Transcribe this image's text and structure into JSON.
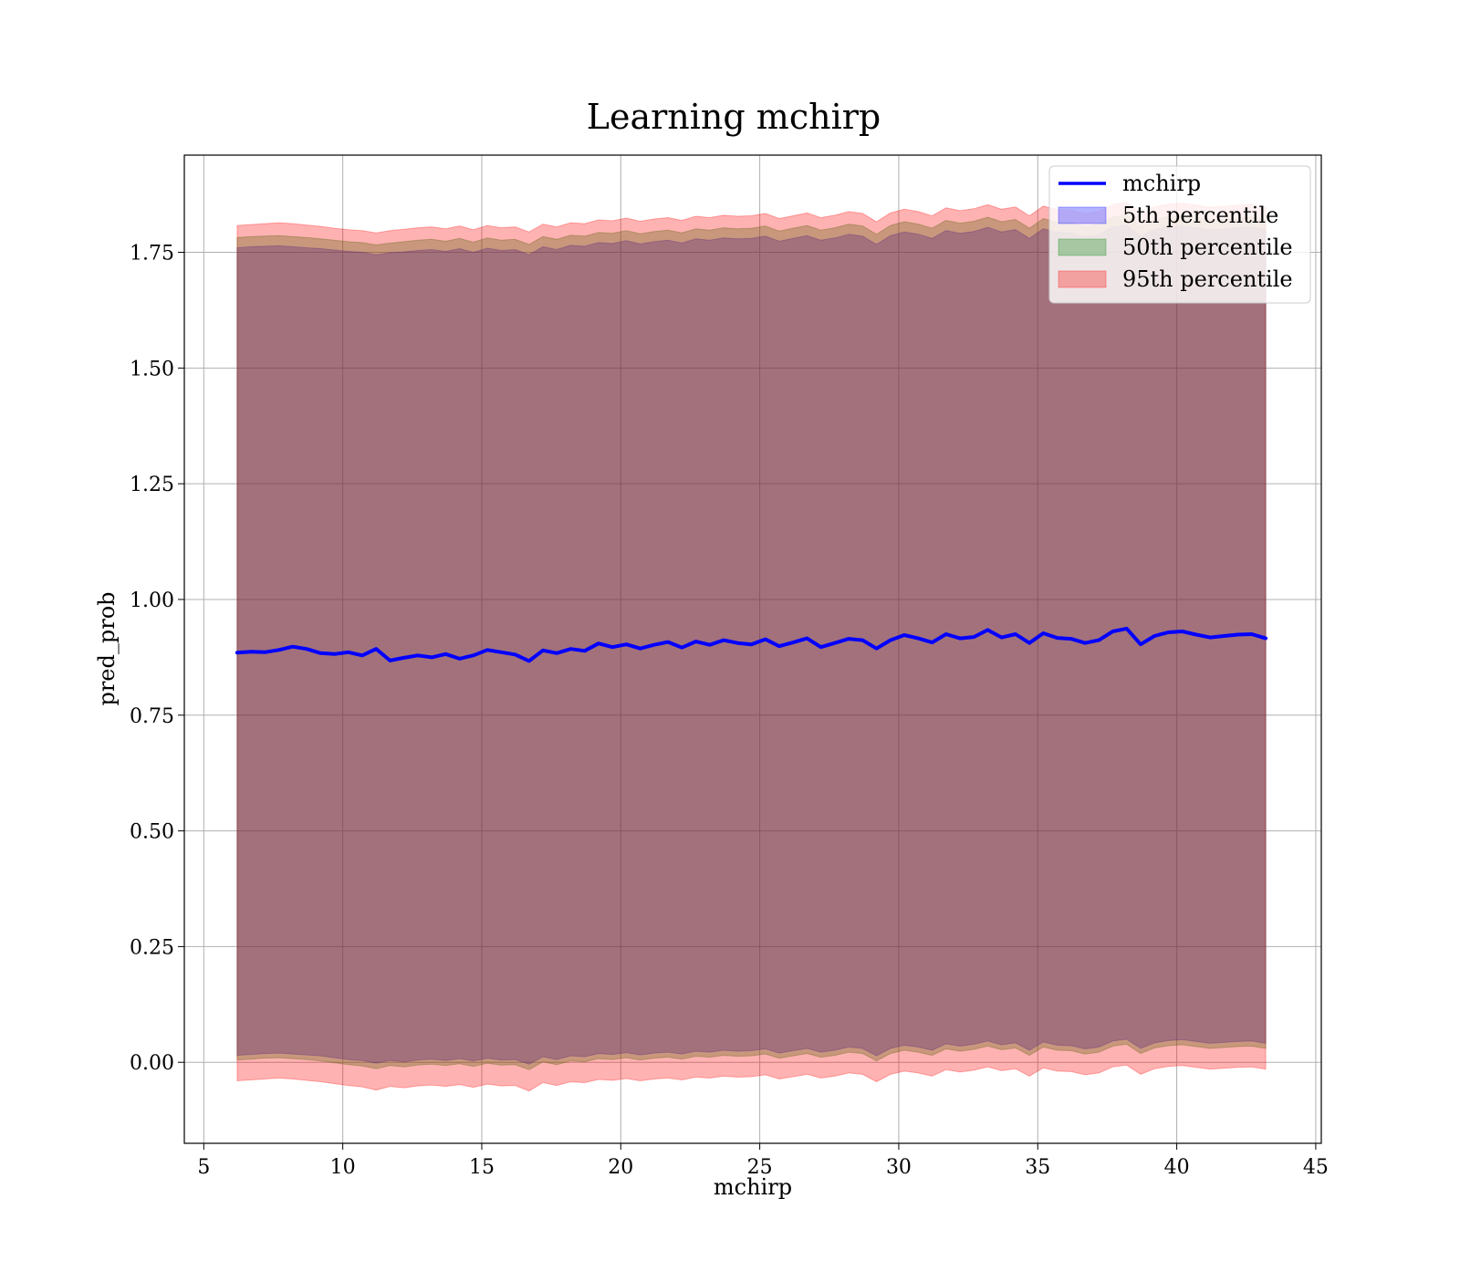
{
  "chart_data": {
    "type": "area",
    "title": "Learning mchirp",
    "xlabel": "mchirp",
    "ylabel": "pred_prob",
    "xlim": [
      4.3,
      45.2
    ],
    "ylim": [
      -0.175,
      1.96
    ],
    "xticks": [
      5,
      10,
      15,
      20,
      25,
      30,
      35,
      40,
      45
    ],
    "yticks": [
      0.0,
      0.25,
      0.5,
      0.75,
      1.0,
      1.25,
      1.5,
      1.75
    ],
    "ytick_labels": [
      "0.00",
      "0.25",
      "0.50",
      "0.75",
      "1.00",
      "1.25",
      "1.50",
      "1.75"
    ],
    "grid": true,
    "legend_position": "top-right",
    "x": [
      6.2,
      6.7,
      7.2,
      7.7,
      8.2,
      8.7,
      9.2,
      9.7,
      10.2,
      10.7,
      11.2,
      11.7,
      12.2,
      12.7,
      13.2,
      13.7,
      14.2,
      14.7,
      15.2,
      15.7,
      16.2,
      16.7,
      17.2,
      17.7,
      18.2,
      18.7,
      19.2,
      19.7,
      20.2,
      20.7,
      21.2,
      21.7,
      22.2,
      22.7,
      23.2,
      23.7,
      24.2,
      24.7,
      25.2,
      25.7,
      26.2,
      26.7,
      27.2,
      27.7,
      28.2,
      28.7,
      29.2,
      29.7,
      30.2,
      30.7,
      31.2,
      31.7,
      32.2,
      32.7,
      33.2,
      33.7,
      34.2,
      34.7,
      35.2,
      35.7,
      36.2,
      36.7,
      37.2,
      37.7,
      38.2,
      38.7,
      39.2,
      39.7,
      40.2,
      40.7,
      41.2,
      41.7,
      42.2,
      42.7,
      43.2
    ],
    "series": [
      {
        "name": "mchirp",
        "kind": "line",
        "color": "#0000ff",
        "values": [
          0.885,
          0.887,
          0.886,
          0.891,
          0.898,
          0.893,
          0.884,
          0.882,
          0.886,
          0.879,
          0.893,
          0.868,
          0.874,
          0.879,
          0.875,
          0.882,
          0.872,
          0.879,
          0.891,
          0.886,
          0.881,
          0.867,
          0.89,
          0.884,
          0.893,
          0.889,
          0.905,
          0.897,
          0.903,
          0.894,
          0.902,
          0.908,
          0.896,
          0.909,
          0.902,
          0.912,
          0.906,
          0.903,
          0.914,
          0.899,
          0.907,
          0.916,
          0.897,
          0.906,
          0.915,
          0.912,
          0.894,
          0.912,
          0.923,
          0.916,
          0.907,
          0.925,
          0.916,
          0.919,
          0.934,
          0.918,
          0.925,
          0.906,
          0.927,
          0.917,
          0.915,
          0.906,
          0.912,
          0.931,
          0.937,
          0.903,
          0.921,
          0.929,
          0.931,
          0.924,
          0.918,
          0.921,
          0.924,
          0.925,
          0.916
        ]
      },
      {
        "name": "5th percentile",
        "kind": "band",
        "color": "#0000ff",
        "lower": [
          0.015,
          0.017,
          0.019,
          0.02,
          0.018,
          0.016,
          0.014,
          0.01,
          0.006,
          0.004,
          -0.002,
          0.004,
          0.001,
          0.005,
          0.007,
          0.004,
          0.008,
          0.003,
          0.009,
          0.005,
          0.006,
          -0.004,
          0.012,
          0.006,
          0.014,
          0.012,
          0.019,
          0.017,
          0.021,
          0.016,
          0.02,
          0.022,
          0.018,
          0.024,
          0.022,
          0.026,
          0.024,
          0.025,
          0.029,
          0.02,
          0.025,
          0.03,
          0.022,
          0.026,
          0.033,
          0.03,
          0.014,
          0.03,
          0.037,
          0.033,
          0.026,
          0.04,
          0.035,
          0.039,
          0.046,
          0.038,
          0.042,
          0.026,
          0.044,
          0.037,
          0.036,
          0.029,
          0.033,
          0.046,
          0.05,
          0.03,
          0.042,
          0.047,
          0.049,
          0.045,
          0.041,
          0.043,
          0.045,
          0.046,
          0.041
        ],
        "upper": [
          1.76,
          1.762,
          1.763,
          1.764,
          1.762,
          1.76,
          1.758,
          1.755,
          1.752,
          1.75,
          1.745,
          1.749,
          1.751,
          1.754,
          1.756,
          1.752,
          1.758,
          1.75,
          1.759,
          1.754,
          1.756,
          1.745,
          1.762,
          1.756,
          1.765,
          1.763,
          1.771,
          1.769,
          1.775,
          1.768,
          1.773,
          1.776,
          1.77,
          1.779,
          1.776,
          1.781,
          1.779,
          1.78,
          1.785,
          1.774,
          1.78,
          1.786,
          1.776,
          1.781,
          1.789,
          1.785,
          1.767,
          1.786,
          1.794,
          1.789,
          1.78,
          1.797,
          1.791,
          1.795,
          1.804,
          1.794,
          1.799,
          1.78,
          1.801,
          1.793,
          1.792,
          1.784,
          1.789,
          1.804,
          1.809,
          1.785,
          1.799,
          1.805,
          1.807,
          1.803,
          1.798,
          1.8,
          1.803,
          1.804,
          1.798
        ]
      },
      {
        "name": "50th percentile",
        "kind": "band",
        "color": "#008000",
        "lower": [
          0.005,
          0.007,
          0.009,
          0.01,
          0.008,
          0.006,
          0.003,
          -0.001,
          -0.005,
          -0.008,
          -0.014,
          -0.007,
          -0.01,
          -0.006,
          -0.004,
          -0.007,
          -0.003,
          -0.009,
          -0.002,
          -0.006,
          -0.005,
          -0.016,
          0.001,
          -0.005,
          0.003,
          0.001,
          0.008,
          0.006,
          0.01,
          0.005,
          0.009,
          0.011,
          0.007,
          0.013,
          0.011,
          0.015,
          0.013,
          0.014,
          0.018,
          0.009,
          0.014,
          0.019,
          0.011,
          0.015,
          0.022,
          0.019,
          0.003,
          0.019,
          0.026,
          0.022,
          0.015,
          0.029,
          0.024,
          0.028,
          0.035,
          0.027,
          0.031,
          0.015,
          0.033,
          0.026,
          0.025,
          0.018,
          0.022,
          0.035,
          0.039,
          0.019,
          0.031,
          0.036,
          0.038,
          0.034,
          0.03,
          0.032,
          0.034,
          0.035,
          0.03
        ],
        "upper": [
          1.782,
          1.784,
          1.785,
          1.786,
          1.784,
          1.782,
          1.779,
          1.776,
          1.773,
          1.771,
          1.766,
          1.77,
          1.773,
          1.776,
          1.778,
          1.774,
          1.78,
          1.772,
          1.781,
          1.776,
          1.778,
          1.767,
          1.784,
          1.778,
          1.787,
          1.785,
          1.793,
          1.791,
          1.797,
          1.79,
          1.795,
          1.798,
          1.792,
          1.801,
          1.798,
          1.803,
          1.801,
          1.802,
          1.807,
          1.796,
          1.802,
          1.808,
          1.798,
          1.803,
          1.811,
          1.807,
          1.789,
          1.808,
          1.816,
          1.811,
          1.802,
          1.819,
          1.813,
          1.817,
          1.826,
          1.816,
          1.821,
          1.802,
          1.823,
          1.815,
          1.814,
          1.806,
          1.811,
          1.826,
          1.831,
          1.807,
          1.821,
          1.827,
          1.829,
          1.825,
          1.82,
          1.822,
          1.825,
          1.826,
          1.82
        ]
      },
      {
        "name": "95th percentile",
        "kind": "band",
        "color": "#ff0000",
        "lower": [
          -0.04,
          -0.038,
          -0.036,
          -0.034,
          -0.036,
          -0.039,
          -0.042,
          -0.046,
          -0.05,
          -0.053,
          -0.06,
          -0.052,
          -0.055,
          -0.051,
          -0.049,
          -0.052,
          -0.048,
          -0.054,
          -0.047,
          -0.051,
          -0.05,
          -0.062,
          -0.044,
          -0.05,
          -0.042,
          -0.044,
          -0.037,
          -0.039,
          -0.035,
          -0.04,
          -0.036,
          -0.034,
          -0.038,
          -0.032,
          -0.034,
          -0.03,
          -0.032,
          -0.031,
          -0.027,
          -0.036,
          -0.031,
          -0.026,
          -0.034,
          -0.03,
          -0.023,
          -0.026,
          -0.042,
          -0.026,
          -0.019,
          -0.023,
          -0.03,
          -0.016,
          -0.021,
          -0.017,
          -0.01,
          -0.018,
          -0.014,
          -0.03,
          -0.012,
          -0.019,
          -0.02,
          -0.027,
          -0.023,
          -0.01,
          -0.006,
          -0.026,
          -0.014,
          -0.009,
          -0.007,
          -0.011,
          -0.015,
          -0.013,
          -0.011,
          -0.01,
          -0.015
        ],
        "upper": [
          1.808,
          1.81,
          1.812,
          1.814,
          1.812,
          1.809,
          1.806,
          1.802,
          1.799,
          1.797,
          1.792,
          1.797,
          1.8,
          1.803,
          1.805,
          1.801,
          1.807,
          1.799,
          1.808,
          1.803,
          1.805,
          1.794,
          1.811,
          1.805,
          1.814,
          1.812,
          1.82,
          1.818,
          1.824,
          1.817,
          1.822,
          1.825,
          1.819,
          1.828,
          1.825,
          1.83,
          1.828,
          1.829,
          1.834,
          1.823,
          1.829,
          1.835,
          1.825,
          1.83,
          1.838,
          1.834,
          1.816,
          1.835,
          1.843,
          1.838,
          1.829,
          1.846,
          1.84,
          1.844,
          1.853,
          1.843,
          1.848,
          1.829,
          1.85,
          1.842,
          1.841,
          1.833,
          1.838,
          1.853,
          1.858,
          1.834,
          1.848,
          1.854,
          1.856,
          1.852,
          1.847,
          1.849,
          1.852,
          1.853,
          1.847
        ]
      }
    ]
  }
}
